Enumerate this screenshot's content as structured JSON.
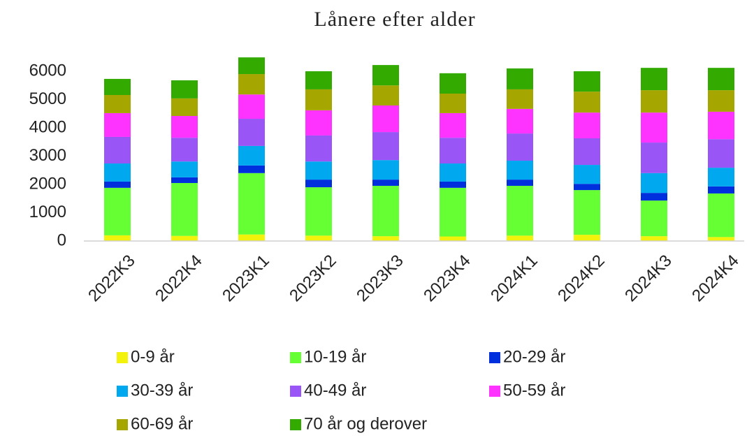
{
  "chart_data": {
    "type": "stacked_bar",
    "title": "Lånere efter alder",
    "categories": [
      "2022K3",
      "2022K4",
      "2023K1",
      "2023K2",
      "2023K3",
      "2023K4",
      "2024K1",
      "2024K2",
      "2024K3",
      "2024K4"
    ],
    "series": [
      {
        "name": "0-9 år",
        "color": "#f2f20a",
        "values": [
          200,
          180,
          230,
          190,
          170,
          160,
          190,
          220,
          170,
          140
        ]
      },
      {
        "name": "10-19 år",
        "color": "#66ff33",
        "values": [
          1680,
          1870,
          2170,
          1710,
          1780,
          1720,
          1760,
          1580,
          1260,
          1540
        ]
      },
      {
        "name": "20-29 år",
        "color": "#0030dd",
        "values": [
          220,
          200,
          270,
          270,
          220,
          220,
          220,
          220,
          270,
          250
        ]
      },
      {
        "name": "30-39 år",
        "color": "#00a8f0",
        "values": [
          640,
          560,
          690,
          640,
          690,
          640,
          670,
          670,
          700,
          660
        ]
      },
      {
        "name": "40-49 år",
        "color": "#9955f5",
        "values": [
          940,
          840,
          960,
          920,
          990,
          910,
          960,
          940,
          1080,
          1010
        ]
      },
      {
        "name": "50-59 år",
        "color": "#ff33ff",
        "values": [
          840,
          770,
          860,
          890,
          940,
          870,
          870,
          910,
          1060,
          970
        ]
      },
      {
        "name": "60-69 år",
        "color": "#a6a600",
        "values": [
          640,
          620,
          720,
          740,
          710,
          690,
          690,
          740,
          790,
          760
        ]
      },
      {
        "name": "70 år og derover",
        "color": "#33aa00",
        "values": [
          570,
          640,
          590,
          640,
          720,
          720,
          740,
          720,
          790,
          790
        ]
      }
    ],
    "ylim": [
      0,
      6000
    ],
    "yticks": [
      0,
      1000,
      2000,
      3000,
      4000,
      5000,
      6000
    ],
    "grid": false,
    "legend": "bottom"
  }
}
